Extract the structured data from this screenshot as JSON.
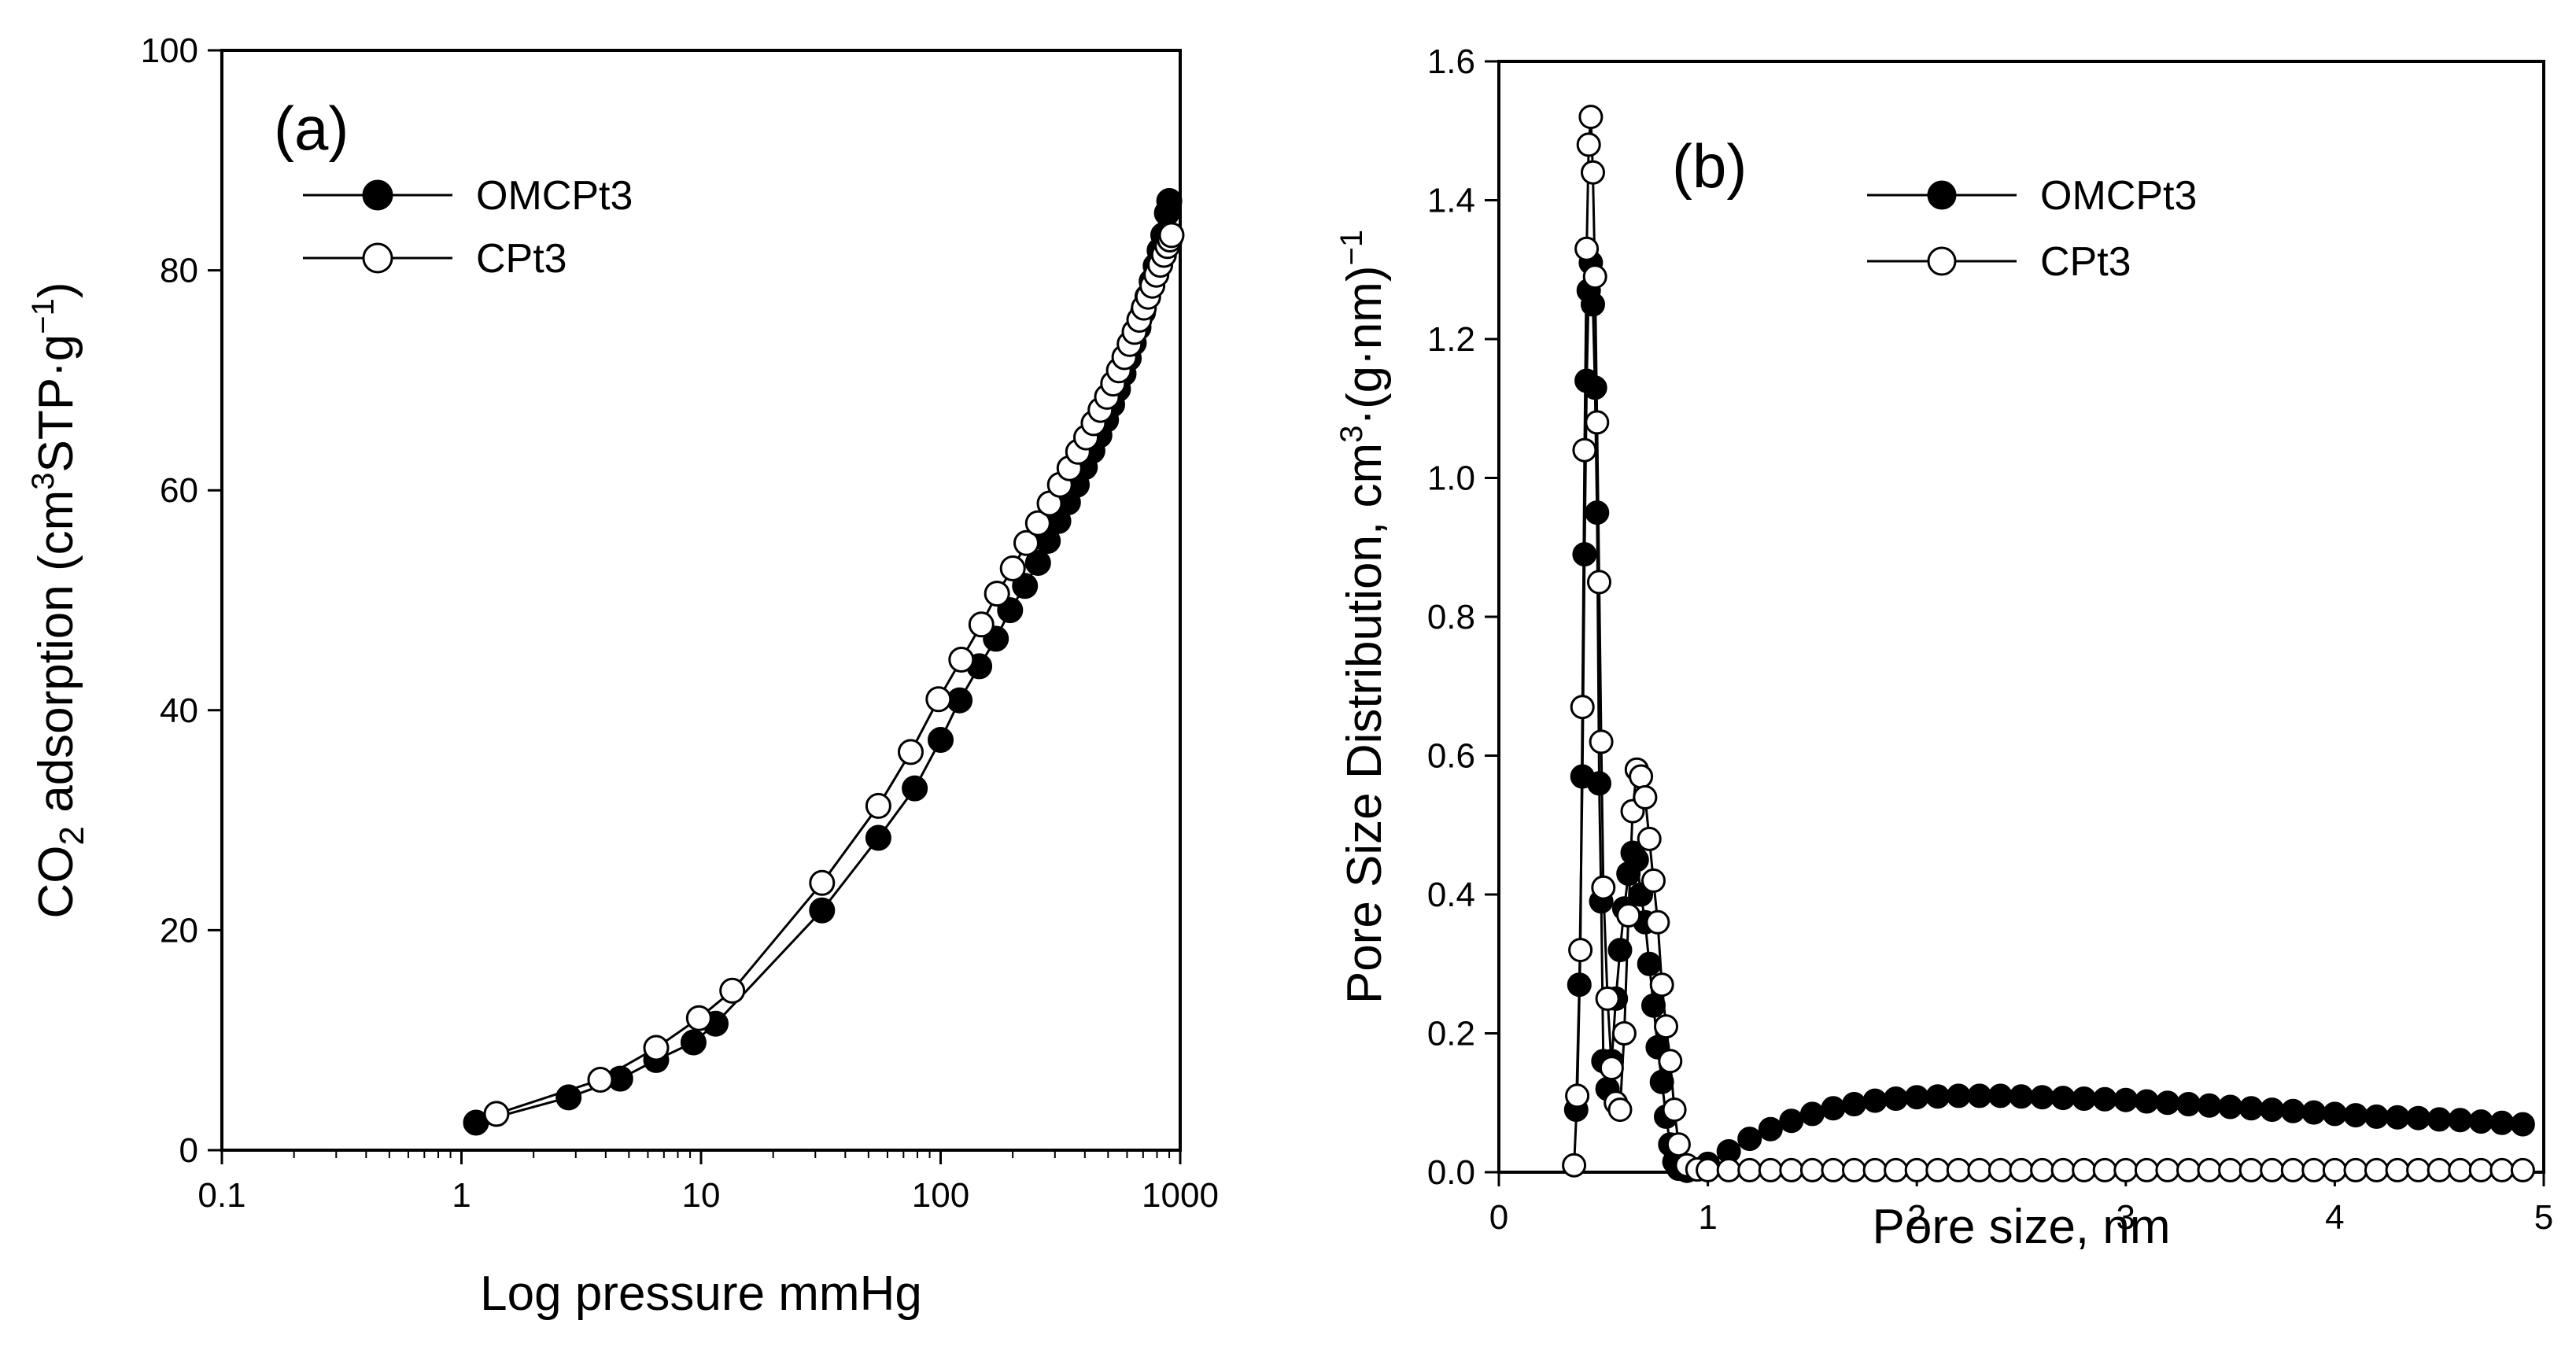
{
  "chart_data": [
    {
      "type": "line",
      "panel_label": "(a)",
      "xscale": "log",
      "xlabel": "Log pressure mmHg",
      "ylabel": {
        "base": "CO",
        "sub": "2",
        "mid": " adsorption (cm",
        "sup": "3",
        "tail": "STP·g",
        "sup2": "−1",
        "end": ")"
      },
      "xlim": [
        0.1,
        1000
      ],
      "ylim": [
        0,
        100
      ],
      "xticks": [
        0.1,
        1,
        10,
        100,
        1000
      ],
      "xtick_labels": [
        "0.1",
        "1",
        "10",
        "100",
        "1000"
      ],
      "yticks": [
        0,
        20,
        40,
        60,
        80,
        100
      ],
      "ytick_labels": [
        "0",
        "20",
        "40",
        "60",
        "80",
        "100"
      ],
      "legend_position": "top-left",
      "series": [
        {
          "name": "OMCPt3",
          "marker": "filled",
          "x": [
            1.15,
            2.8,
            4.6,
            6.5,
            9.3,
            11.5,
            32,
            55,
            78,
            100,
            120,
            145,
            170,
            195,
            225,
            255,
            280,
            310,
            340,
            370,
            400,
            430,
            460,
            490,
            520,
            550,
            580,
            610,
            640,
            670,
            700,
            730,
            760,
            790,
            820,
            850,
            880,
            900
          ],
          "y": [
            2.5,
            4.8,
            6.5,
            8.2,
            9.8,
            11.5,
            21.8,
            28.4,
            32.9,
            37.3,
            40.9,
            44.0,
            46.5,
            49.1,
            51.3,
            53.4,
            55.4,
            57.2,
            58.9,
            60.5,
            62.1,
            63.6,
            65.0,
            66.4,
            67.8,
            69.2,
            70.6,
            72.0,
            73.4,
            74.8,
            76.2,
            77.6,
            79.0,
            80.4,
            81.8,
            83.2,
            85.2,
            86.3
          ]
        },
        {
          "name": "CPt3",
          "marker": "open",
          "x": [
            1.4,
            3.8,
            6.5,
            9.8,
            13.5,
            32,
            55,
            75,
            98,
            122,
            148,
            172,
            200,
            228,
            255,
            285,
            315,
            345,
            375,
            405,
            435,
            465,
            495,
            525,
            555,
            585,
            615,
            645,
            675,
            705,
            735,
            765,
            795,
            825,
            855,
            885,
            905,
            920
          ],
          "y": [
            3.3,
            6.4,
            9.3,
            12.0,
            14.5,
            24.3,
            31.3,
            36.2,
            41.0,
            44.6,
            47.8,
            50.6,
            52.9,
            55.2,
            57.0,
            58.8,
            60.5,
            62.0,
            63.5,
            64.8,
            66.1,
            67.3,
            68.5,
            69.7,
            70.9,
            72.1,
            73.3,
            74.4,
            75.5,
            76.6,
            77.6,
            78.6,
            79.6,
            80.5,
            81.4,
            82.2,
            82.8,
            83.2
          ]
        }
      ]
    },
    {
      "type": "line",
      "panel_label": "(b)",
      "xlabel": "Pore size, nm",
      "ylabel": {
        "main": "Pore Size Distribution, cm",
        "sup": "3",
        "mid": "·(g·nm)",
        "sup2": "−1"
      },
      "xlim": [
        0,
        5
      ],
      "ylim": [
        0,
        1.6
      ],
      "xticks": [
        0,
        1,
        2,
        3,
        4,
        5
      ],
      "xtick_labels": [
        "0",
        "1",
        "2",
        "3",
        "4",
        "5"
      ],
      "yticks": [
        0,
        0.2,
        0.4,
        0.6,
        0.8,
        1.0,
        1.2,
        1.4,
        1.6
      ],
      "ytick_labels": [
        "0.0",
        "0.2",
        "0.4",
        "0.6",
        "0.8",
        "1.0",
        "1.2",
        "1.4",
        "1.6"
      ],
      "legend_position": "top-right",
      "series": [
        {
          "name": "OMCPt3",
          "marker": "filled",
          "x": [
            0.37,
            0.385,
            0.4,
            0.41,
            0.42,
            0.43,
            0.44,
            0.45,
            0.46,
            0.47,
            0.48,
            0.49,
            0.5,
            0.52,
            0.54,
            0.56,
            0.58,
            0.6,
            0.62,
            0.64,
            0.66,
            0.68,
            0.7,
            0.72,
            0.74,
            0.76,
            0.78,
            0.8,
            0.82,
            0.84,
            0.86,
            0.9,
            0.95,
            1.0,
            1.1,
            1.2,
            1.3,
            1.4,
            1.5,
            1.6,
            1.7,
            1.8,
            1.9,
            2.0,
            2.1,
            2.2,
            2.3,
            2.4,
            2.5,
            2.6,
            2.7,
            2.8,
            2.9,
            3.0,
            3.1,
            3.2,
            3.3,
            3.4,
            3.5,
            3.6,
            3.7,
            3.8,
            3.9,
            4.0,
            4.1,
            4.2,
            4.3,
            4.4,
            4.5,
            4.6,
            4.7,
            4.8,
            4.9
          ],
          "y": [
            0.09,
            0.27,
            0.57,
            0.89,
            1.14,
            1.27,
            1.31,
            1.25,
            1.13,
            0.95,
            0.56,
            0.39,
            0.16,
            0.12,
            0.16,
            0.25,
            0.32,
            0.38,
            0.43,
            0.46,
            0.45,
            0.4,
            0.36,
            0.3,
            0.24,
            0.18,
            0.13,
            0.08,
            0.04,
            0.015,
            0.005,
            0.002,
            0.004,
            0.012,
            0.03,
            0.048,
            0.062,
            0.074,
            0.084,
            0.092,
            0.098,
            0.103,
            0.106,
            0.108,
            0.109,
            0.11,
            0.11,
            0.11,
            0.109,
            0.108,
            0.107,
            0.106,
            0.105,
            0.104,
            0.102,
            0.1,
            0.098,
            0.096,
            0.094,
            0.092,
            0.09,
            0.088,
            0.086,
            0.084,
            0.082,
            0.08,
            0.079,
            0.078,
            0.076,
            0.075,
            0.073,
            0.071,
            0.069
          ]
        },
        {
          "name": "CPt3",
          "marker": "open",
          "x": [
            0.36,
            0.375,
            0.39,
            0.4,
            0.41,
            0.42,
            0.43,
            0.44,
            0.45,
            0.46,
            0.47,
            0.48,
            0.49,
            0.5,
            0.52,
            0.54,
            0.56,
            0.58,
            0.6,
            0.62,
            0.64,
            0.66,
            0.68,
            0.7,
            0.72,
            0.74,
            0.76,
            0.78,
            0.8,
            0.82,
            0.84,
            0.86,
            0.9,
            0.95,
            1.0,
            1.1,
            1.2,
            1.3,
            1.4,
            1.5,
            1.6,
            1.7,
            1.8,
            1.9,
            2.0,
            2.1,
            2.2,
            2.3,
            2.4,
            2.5,
            2.6,
            2.7,
            2.8,
            2.9,
            3.0,
            3.1,
            3.2,
            3.3,
            3.4,
            3.5,
            3.6,
            3.7,
            3.8,
            3.9,
            4.0,
            4.1,
            4.2,
            4.3,
            4.4,
            4.5,
            4.6,
            4.7,
            4.8,
            4.9
          ],
          "y": [
            0.01,
            0.11,
            0.32,
            0.67,
            1.04,
            1.33,
            1.48,
            1.52,
            1.44,
            1.29,
            1.08,
            0.85,
            0.62,
            0.41,
            0.25,
            0.15,
            0.1,
            0.09,
            0.2,
            0.37,
            0.52,
            0.58,
            0.57,
            0.54,
            0.48,
            0.42,
            0.36,
            0.27,
            0.21,
            0.16,
            0.09,
            0.04,
            0.01,
            0.004,
            0.003,
            0.003,
            0.003,
            0.003,
            0.003,
            0.003,
            0.003,
            0.003,
            0.003,
            0.003,
            0.003,
            0.003,
            0.003,
            0.003,
            0.003,
            0.003,
            0.003,
            0.003,
            0.003,
            0.003,
            0.003,
            0.003,
            0.003,
            0.003,
            0.003,
            0.003,
            0.003,
            0.003,
            0.003,
            0.003,
            0.003,
            0.003,
            0.003,
            0.003,
            0.003,
            0.003,
            0.003,
            0.003,
            0.003,
            0.003
          ]
        }
      ]
    }
  ]
}
